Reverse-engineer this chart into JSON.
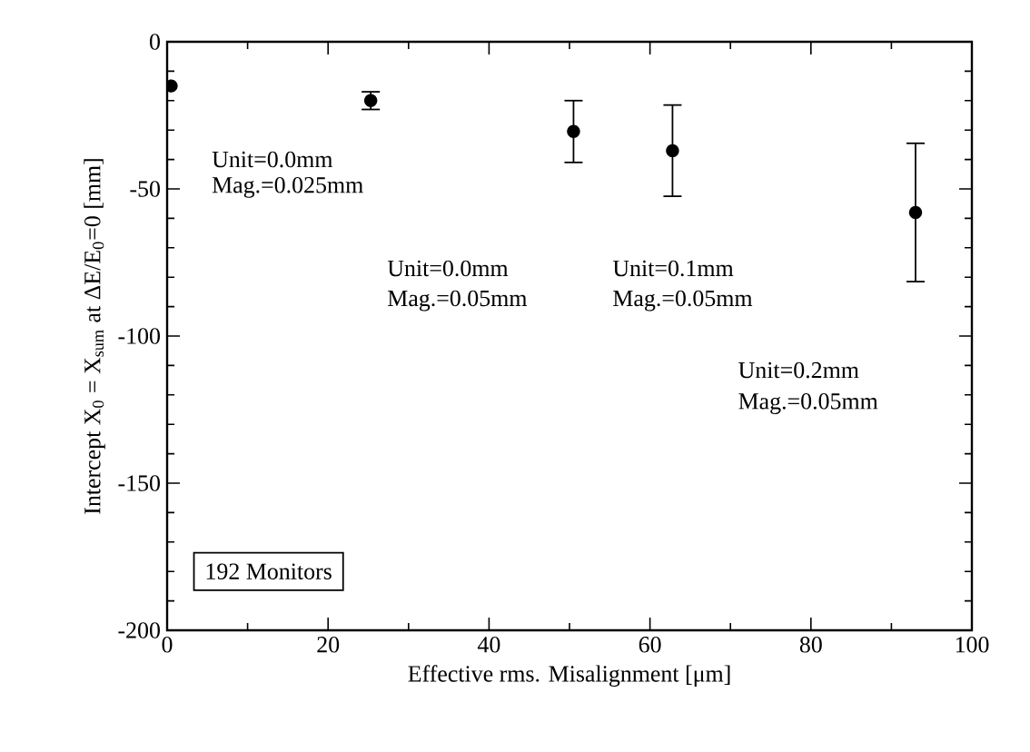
{
  "chart_data": {
    "type": "scatter",
    "xlabel": "Effective rms. Misalignment [μm]",
    "ylabel": "Intercept X$_{0}$ = X$_{sum}$ at ΔE/E$_{0}$=0  [mm]",
    "x": [
      0.5,
      25.3,
      50.5,
      62.8,
      93
    ],
    "values": [
      -15,
      -20,
      -30.5,
      -37,
      -58
    ],
    "errors": [
      null,
      3,
      10.5,
      15.5,
      23.5
    ],
    "color": "#000000",
    "marker": "circle",
    "xlim": [
      0,
      100
    ],
    "xticks": [
      0,
      20,
      40,
      60,
      80,
      100
    ],
    "ylim": [
      -200,
      0
    ],
    "yticks": [
      -200,
      -150,
      -100,
      -50,
      0
    ],
    "grid": false,
    "annotations": [
      "Unit=0.0mm",
      "Mag.=0.025mm",
      "Unit=0.0mm",
      "Mag.=0.05mm",
      "Unit=0.1mm",
      "Mag.=0.05mm",
      "Unit=0.2mm",
      "Mag.=0.05mm",
      "192 Monitors"
    ]
  }
}
